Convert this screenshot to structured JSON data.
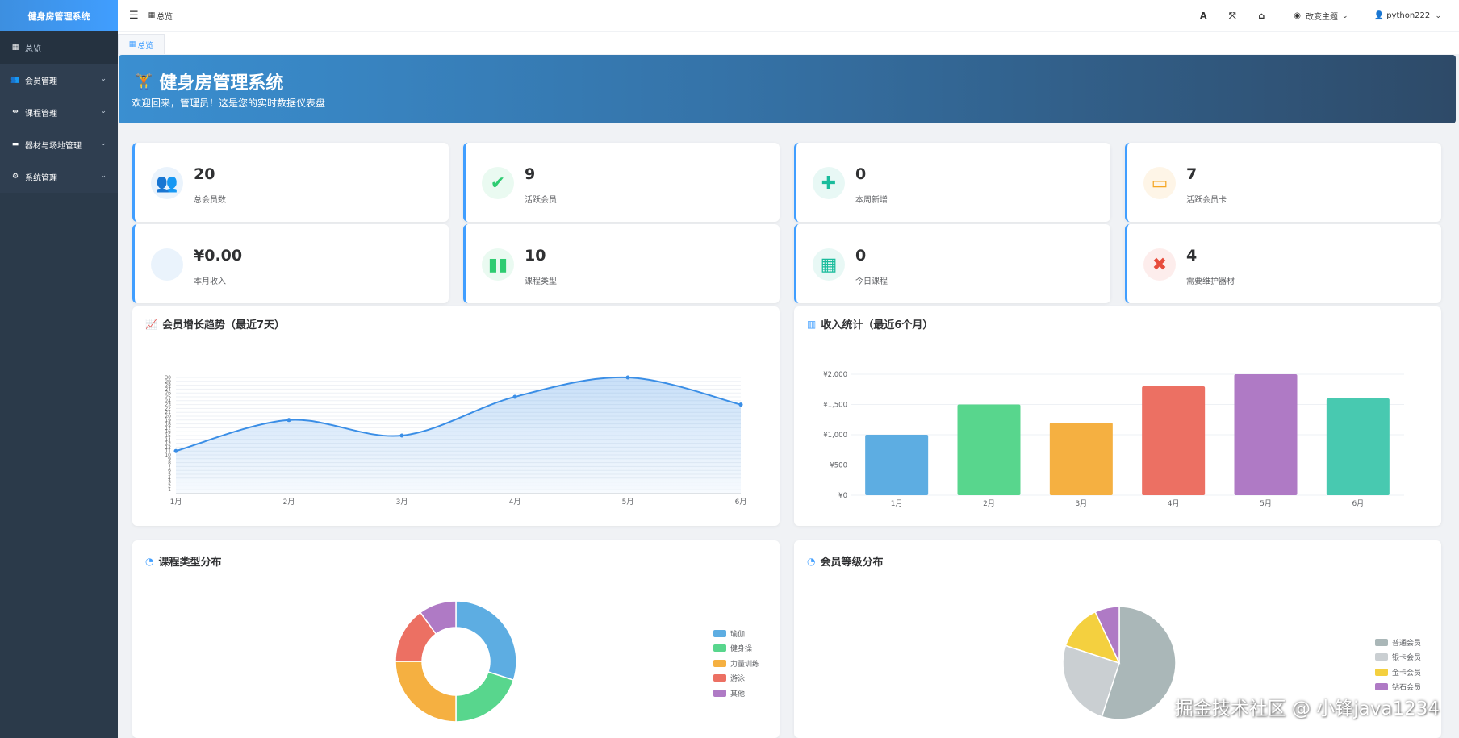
{
  "app": {
    "brand": "健身房管理系统"
  },
  "sidebar": {
    "items": [
      {
        "label": "总览",
        "icon": "dashboard-icon"
      },
      {
        "label": "会员管理",
        "icon": "users-icon"
      },
      {
        "label": "课程管理",
        "icon": "dumbbell-icon"
      },
      {
        "label": "器材与场地管理",
        "icon": "warehouse-icon"
      },
      {
        "label": "系统管理",
        "icon": "gear-icon"
      }
    ]
  },
  "header": {
    "breadcrumb": "总览",
    "font_icon": "A",
    "theme_label": "改变主题",
    "username": "python222"
  },
  "tabs": [
    {
      "label": "总览"
    }
  ],
  "banner": {
    "title": "健身房管理系统",
    "subtitle": "欢迎回来，管理员！这是您的实时数据仪表盘"
  },
  "stats": [
    {
      "value": "20",
      "label": "总会员数",
      "icon": "users-icon",
      "color": "#3a8ee6"
    },
    {
      "value": "9",
      "label": "活跃会员",
      "icon": "user-check-icon",
      "color": "#2ecc71"
    },
    {
      "value": "0",
      "label": "本周新增",
      "icon": "user-plus-icon",
      "color": "#1abc9c"
    },
    {
      "value": "7",
      "label": "活跃会员卡",
      "icon": "credit-card-icon",
      "color": "#f5a623"
    },
    {
      "value": "¥0.00",
      "label": "本月收入",
      "icon": "money-icon",
      "color": "#3a8ee6"
    },
    {
      "value": "10",
      "label": "课程类型",
      "icon": "dumbbell-icon",
      "color": "#2ecc71"
    },
    {
      "value": "0",
      "label": "今日课程",
      "icon": "calendar-icon",
      "color": "#1abc9c"
    },
    {
      "value": "4",
      "label": "需要维护器材",
      "icon": "tools-icon",
      "color": "#e74c3c"
    }
  ],
  "panels": {
    "growth": {
      "title": "会员增长趋势（最近7天）"
    },
    "income": {
      "title": "收入统计（最近6个月）"
    },
    "course": {
      "title": "课程类型分布"
    },
    "level": {
      "title": "会员等级分布"
    }
  },
  "chart_data": [
    {
      "type": "line",
      "x": [
        "1月",
        "2月",
        "3月",
        "4月",
        "5月",
        "6月"
      ],
      "values": [
        11,
        19,
        15,
        25,
        30,
        23
      ],
      "ylim": [
        0,
        30
      ],
      "yticks": [
        1,
        2,
        3,
        4,
        5,
        6,
        7,
        8,
        9,
        10,
        11,
        12,
        13,
        14,
        15,
        16,
        17,
        18,
        19,
        20,
        21,
        22,
        23,
        24,
        25,
        26,
        27,
        28,
        29,
        30
      ],
      "color": "#3a8ee6"
    },
    {
      "type": "bar",
      "categories": [
        "1月",
        "2月",
        "3月",
        "4月",
        "5月",
        "6月"
      ],
      "values": [
        1000,
        1500,
        1200,
        1800,
        2000,
        1600
      ],
      "ylim": [
        0,
        2000
      ],
      "yticks": [
        "¥0",
        "¥500",
        "¥1,000",
        "¥1,500",
        "¥2,000"
      ],
      "colors": [
        "#5dade2",
        "#58d68d",
        "#f5b041",
        "#ec7063",
        "#af7ac5",
        "#48c9b0"
      ]
    },
    {
      "type": "pie",
      "donut": true,
      "labels": [
        "瑜伽",
        "健身操",
        "力量训练",
        "游泳",
        "其他"
      ],
      "values": [
        30,
        20,
        25,
        15,
        10
      ],
      "colors": [
        "#5dade2",
        "#58d68d",
        "#f5b041",
        "#ec7063",
        "#af7ac5"
      ],
      "legend": "right"
    },
    {
      "type": "pie",
      "donut": false,
      "labels": [
        "普通会员",
        "银卡会员",
        "金卡会员",
        "钻石会员"
      ],
      "values": [
        55,
        25,
        13,
        7
      ],
      "colors": [
        "#aab7b8",
        "#cacfd2",
        "#f4d03f",
        "#af7ac5"
      ],
      "legend": "right"
    }
  ],
  "watermark": "掘金技术社区 @ 小锋java1234"
}
